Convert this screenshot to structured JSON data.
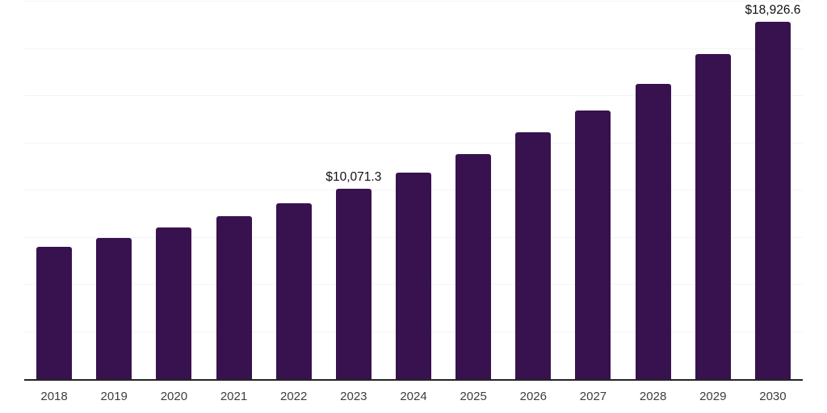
{
  "chart_data": {
    "type": "bar",
    "title": "",
    "xlabel": "",
    "ylabel": "",
    "categories": [
      "2018",
      "2019",
      "2020",
      "2021",
      "2022",
      "2023",
      "2024",
      "2025",
      "2026",
      "2027",
      "2028",
      "2029",
      "2030"
    ],
    "values": [
      7020,
      7480,
      8050,
      8650,
      9330,
      10071.3,
      10930,
      11920,
      13060,
      14240,
      15630,
      17240,
      18926.6
    ],
    "value_labels": [
      {
        "category": "2023",
        "text": "$10,071.3"
      },
      {
        "category": "2030",
        "text": "$18,926.6"
      }
    ],
    "ylim": [
      0,
      20000
    ],
    "gridline_step": 2500,
    "grid": "horizontal",
    "legend": "none",
    "y_axis_labels_visible": false,
    "colors": {
      "bar": "#38124e",
      "gridline": "#f4f4f6",
      "axis_line": "#242424",
      "x_tick_text": "#3d3d3d",
      "value_label_text": "#111111",
      "background": "#ffffff"
    }
  }
}
